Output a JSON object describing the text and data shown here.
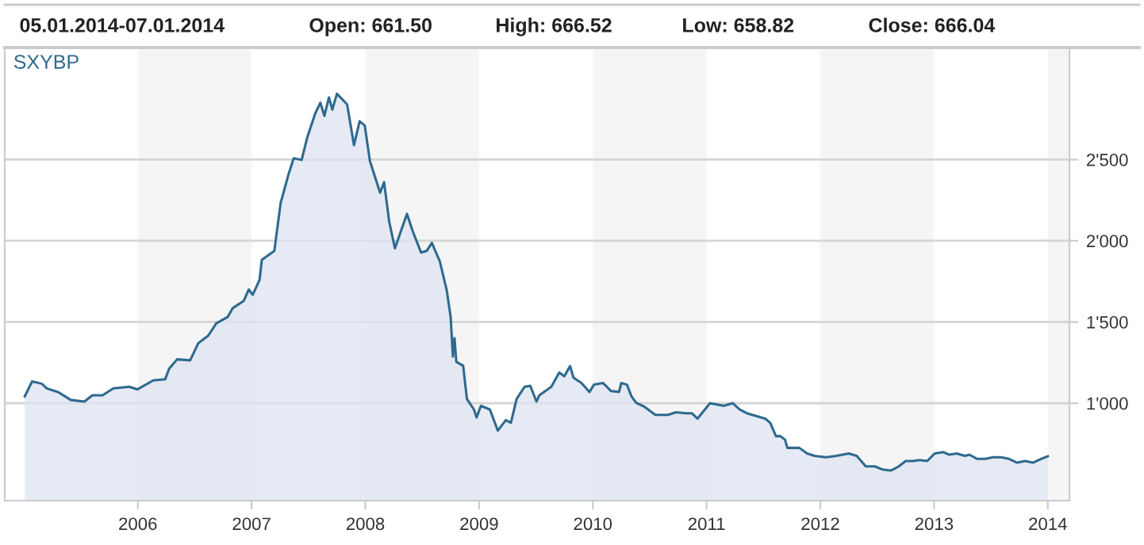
{
  "chart_data": {
    "type": "area",
    "annotations": [
      "05.01.2014-07.01.2014",
      "Open: 661.50",
      "High: 666.52",
      "Low: 658.82",
      "Close: 666.04"
    ],
    "xlim": [
      2004.83,
      2014.19
    ],
    "xticks": [
      2006,
      2007,
      2008,
      2009,
      2010,
      2011,
      2012,
      2013,
      2014
    ],
    "ylim": [
      400,
      3190
    ],
    "yticks": [
      {
        "value": 1000,
        "label": "1'000"
      },
      {
        "value": 1500,
        "label": "1'500"
      },
      {
        "value": 2000,
        "label": "2'000"
      },
      {
        "value": 2500,
        "label": "2'500"
      }
    ],
    "grid": "y",
    "legend": "top left",
    "bands": [
      {
        "axis": "x",
        "from": 2006,
        "to": 2007,
        "color": "#f5f5f5"
      },
      {
        "axis": "x",
        "from": 2008,
        "to": 2009,
        "color": "#f5f5f5"
      },
      {
        "axis": "x",
        "from": 2010,
        "to": 2011,
        "color": "#f5f5f5"
      },
      {
        "axis": "x",
        "from": 2012,
        "to": 2013,
        "color": "#f5f5f5"
      },
      {
        "axis": "x",
        "from": 2014,
        "to": 2014.19,
        "color": "#f5f5f5"
      }
    ],
    "series": [
      {
        "name": "SXYBP",
        "color": "#2e6a8f",
        "x": [
          2005.006,
          2005.07,
          2005.155,
          2005.2,
          2005.3,
          2005.41,
          2005.53,
          2005.6,
          2005.69,
          2005.785,
          2005.925,
          2005.995,
          2006.135,
          2006.24,
          2006.275,
          2006.345,
          2006.46,
          2006.53,
          2006.62,
          2006.69,
          2006.79,
          2006.835,
          2006.93,
          2006.975,
          2007.01,
          2007.07,
          2007.09,
          2007.2,
          2007.255,
          2007.325,
          2007.37,
          2007.44,
          2007.49,
          2007.56,
          2007.605,
          2007.64,
          2007.68,
          2007.71,
          2007.75,
          2007.84,
          2007.9,
          2007.95,
          2007.995,
          2008.04,
          2008.1,
          2008.13,
          2008.165,
          2008.21,
          2008.26,
          2008.366,
          2008.42,
          2008.49,
          2008.54,
          2008.585,
          2008.655,
          2008.716,
          2008.75,
          2008.77,
          2008.784,
          2008.8,
          2008.86,
          2008.893,
          2008.955,
          2008.978,
          2009.016,
          2009.095,
          2009.165,
          2009.235,
          2009.28,
          2009.33,
          2009.4,
          2009.45,
          2009.505,
          2009.53,
          2009.635,
          2009.705,
          2009.75,
          2009.8,
          2009.83,
          2009.9,
          2009.97,
          2010.01,
          2010.09,
          2010.16,
          2010.23,
          2010.25,
          2010.3,
          2010.34,
          2010.38,
          2010.456,
          2010.55,
          2010.66,
          2010.73,
          2010.825,
          2010.87,
          2010.92,
          2010.985,
          2011.03,
          2011.15,
          2011.23,
          2011.29,
          2011.355,
          2011.45,
          2011.516,
          2011.56,
          2011.61,
          2011.65,
          2011.69,
          2011.71,
          2011.815,
          2011.885,
          2011.95,
          2012.05,
          2012.14,
          2012.25,
          2012.32,
          2012.4,
          2012.48,
          2012.55,
          2012.62,
          2012.69,
          2012.75,
          2012.81,
          2012.875,
          2012.94,
          2013.005,
          2013.08,
          2013.13,
          2013.2,
          2013.27,
          2013.31,
          2013.38,
          2013.45,
          2013.52,
          2013.59,
          2013.66,
          2013.73,
          2013.8,
          2013.87,
          2013.94,
          2014.0
        ],
        "values": [
          1042,
          1134,
          1120,
          1091,
          1068,
          1020,
          1010,
          1049,
          1049,
          1091,
          1101,
          1085,
          1140,
          1147,
          1212,
          1270,
          1264,
          1368,
          1417,
          1492,
          1531,
          1586,
          1629,
          1700,
          1668,
          1759,
          1883,
          1938,
          2231,
          2410,
          2508,
          2498,
          2638,
          2785,
          2850,
          2769,
          2883,
          2808,
          2905,
          2840,
          2589,
          2736,
          2710,
          2492,
          2361,
          2296,
          2361,
          2117,
          1954,
          2166,
          2052,
          1928,
          1938,
          1987,
          1873,
          1694,
          1531,
          1287,
          1401,
          1254,
          1231,
          1026,
          961,
          912,
          984,
          961,
          831,
          896,
          880,
          1026,
          1101,
          1107,
          1010,
          1049,
          1101,
          1189,
          1166,
          1229,
          1157,
          1124,
          1069,
          1114,
          1124,
          1075,
          1069,
          1124,
          1114,
          1042,
          1003,
          977,
          928,
          928,
          944,
          938,
          938,
          905,
          961,
          1000,
          984,
          1000,
          961,
          938,
          918,
          905,
          879,
          797,
          797,
          775,
          725,
          725,
          690,
          676,
          667,
          676,
          690,
          676,
          611,
          611,
          591,
          585,
          611,
          644,
          644,
          650,
          644,
          690,
          699,
          683,
          690,
          676,
          683,
          657,
          657,
          667,
          667,
          657,
          634,
          644,
          634,
          657,
          673
        ]
      }
    ]
  }
}
